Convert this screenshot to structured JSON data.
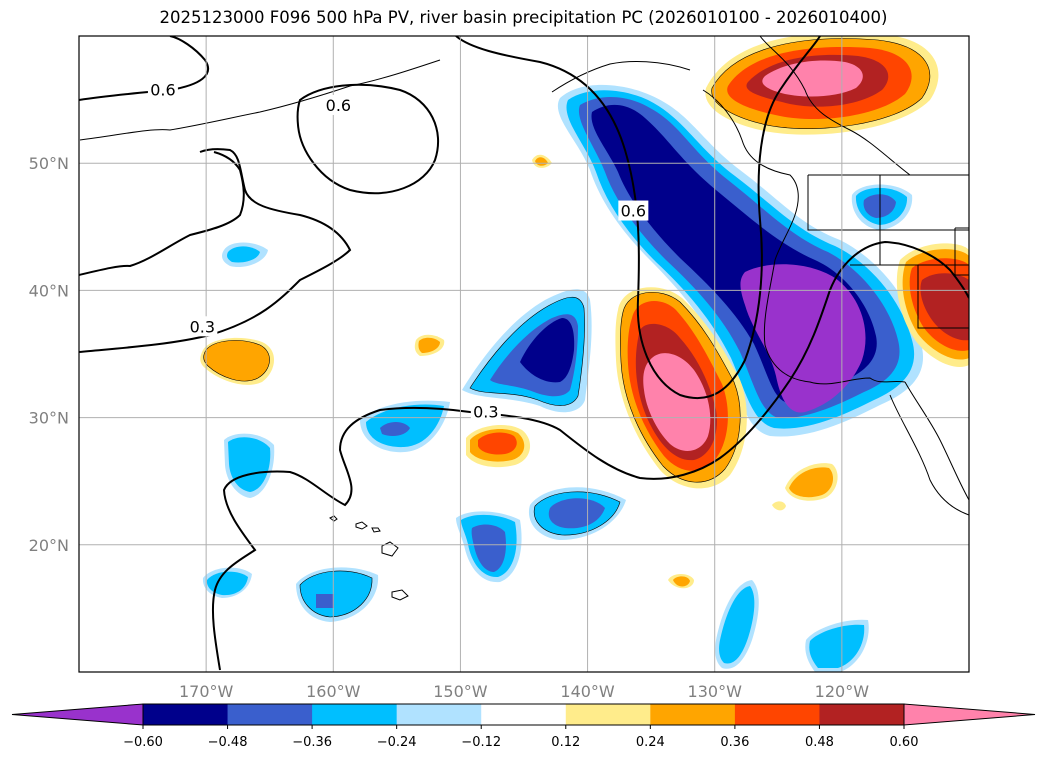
{
  "title": "2025123000 F096 500 hPa PV, river basin precipitation PC (2026010100 - 2026010400)",
  "map": {
    "lon_range": [
      -180,
      -110
    ],
    "lat_range": [
      10,
      60
    ],
    "lat_ticks": [
      {
        "value": 50,
        "label": "50°N"
      },
      {
        "value": 40,
        "label": "40°N"
      },
      {
        "value": 30,
        "label": "30°N"
      },
      {
        "value": 20,
        "label": "20°N"
      }
    ],
    "lon_ticks": [
      {
        "value": -170,
        "label": "170°W"
      },
      {
        "value": -160,
        "label": "160°W"
      },
      {
        "value": -150,
        "label": "150°W"
      },
      {
        "value": -140,
        "label": "140°W"
      },
      {
        "value": -130,
        "label": "130°W"
      },
      {
        "value": -120,
        "label": "120°W"
      }
    ],
    "pv_contour_labels": [
      {
        "text": "0.6",
        "lon": -173.4,
        "lat": 55.7
      },
      {
        "text": "0.6",
        "lon": -159.6,
        "lat": 54.5
      },
      {
        "text": "0.6",
        "lon": -136.4,
        "lat": 46.2
      },
      {
        "text": "0.3",
        "lon": -170.3,
        "lat": 37.1
      },
      {
        "text": "0.3",
        "lon": -148.0,
        "lat": 30.4
      }
    ]
  },
  "colorbar": {
    "extend": "both",
    "levels": [
      "−0.60",
      "−0.48",
      "−0.36",
      "−0.24",
      "−0.12",
      "0.12",
      "0.24",
      "0.36",
      "0.48",
      "0.60"
    ],
    "colors": {
      "under": "#9932cc",
      "n060_n048": "#00008b",
      "n048_n036": "#3a5fcd",
      "n036_n024": "#00bfff",
      "n024_n012": "#b0e2ff",
      "n012_p012": "#ffffff",
      "p012_p024": "#ffec8b",
      "p024_p036": "#ffa500",
      "p036_p048": "#ff4500",
      "p048_p060": "#b22222",
      "over": "#ff82ab"
    }
  }
}
